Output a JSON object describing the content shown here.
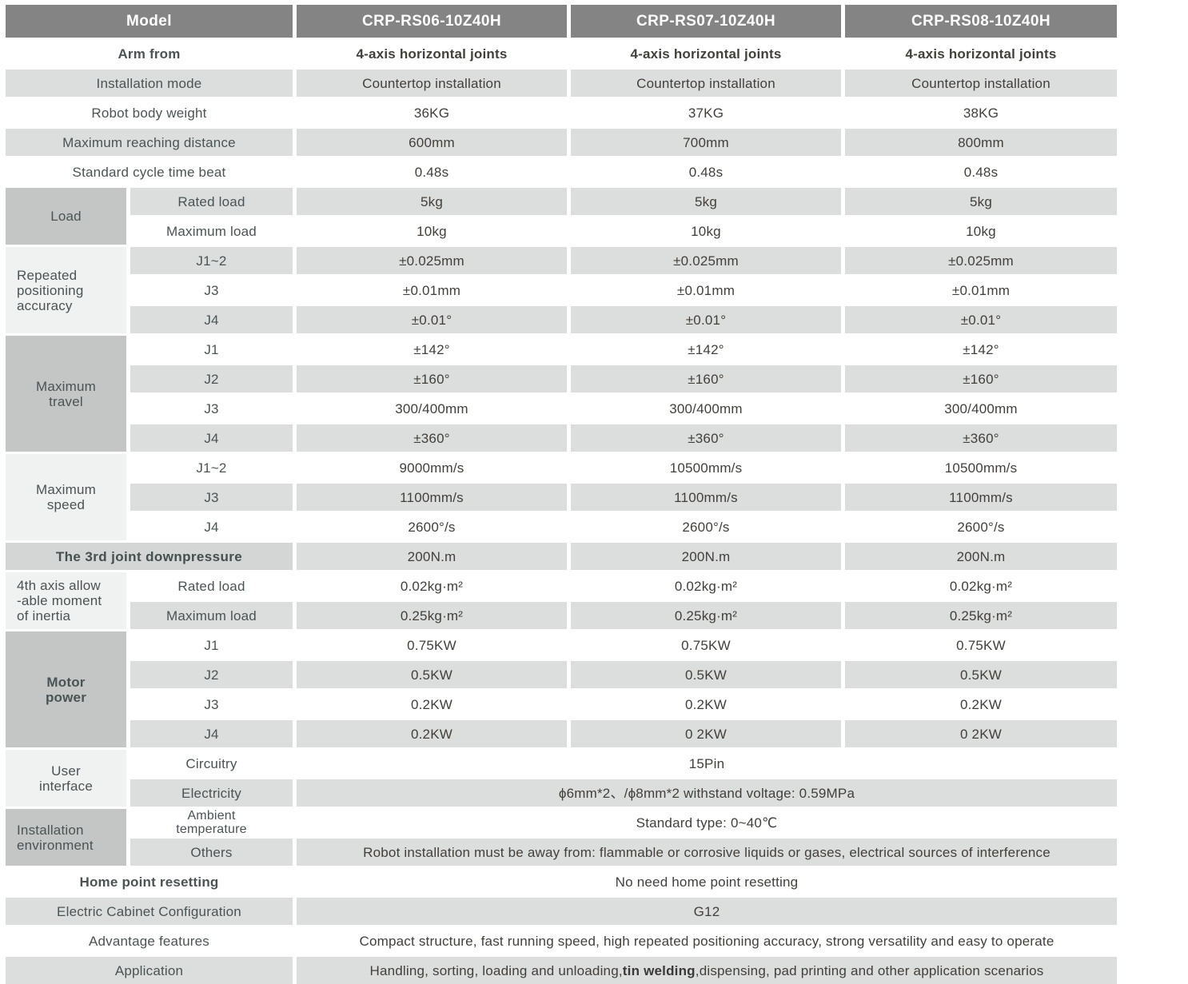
{
  "colors": {
    "header_bg": "#848484",
    "header_text": "#ffffff",
    "row_stripe_bg": "#dcdedd",
    "group_dark_bg": "#c3c6c5",
    "group_light_bg": "#f0f1f1",
    "section_label_bg": "#d3d6d5",
    "label_text": "#4c5355",
    "value_text": "#43403c"
  },
  "header": {
    "label": "Model",
    "models": [
      "CRP-RS06-10Z40H",
      "CRP-RS07-10Z40H",
      "CRP-RS08-10Z40H"
    ]
  },
  "rows": {
    "arm_from": {
      "label": "Arm from",
      "values": [
        "4-axis horizontal joints",
        "4-axis horizontal joints",
        "4-axis horizontal joints"
      ]
    },
    "installation_mode": {
      "label": "Installation mode",
      "values": [
        "Countertop installation",
        "Countertop installation",
        "Countertop installation"
      ]
    },
    "robot_body_weight": {
      "label": "Robot body weight",
      "values": [
        "36KG",
        "37KG",
        "38KG"
      ]
    },
    "max_reach": {
      "label": "Maximum reaching distance",
      "values": [
        "600mm",
        "700mm",
        "800mm"
      ]
    },
    "cycle_time": {
      "label": "Standard cycle time beat",
      "values": [
        "0.48s",
        "0.48s",
        "0.48s"
      ]
    },
    "load": {
      "label": "Load",
      "rated": {
        "label": "Rated load",
        "values": [
          "5kg",
          "5kg",
          "5kg"
        ]
      },
      "max": {
        "label": "Maximum load",
        "values": [
          "10kg",
          "10kg",
          "10kg"
        ]
      }
    },
    "accuracy": {
      "lines": [
        "Repeated",
        "positioning",
        "accuracy"
      ],
      "j12": {
        "label": "J1~2",
        "values": [
          "±0.025mm",
          "±0.025mm",
          "±0.025mm"
        ]
      },
      "j3": {
        "label": "J3",
        "values": [
          "±0.01mm",
          "±0.01mm",
          "±0.01mm"
        ]
      },
      "j4": {
        "label": "J4",
        "values": [
          "±0.01°",
          "±0.01°",
          "±0.01°"
        ]
      }
    },
    "travel": {
      "lines": [
        "Maximum",
        "travel"
      ],
      "j1": {
        "label": "J1",
        "values": [
          "±142°",
          "±142°",
          "±142°"
        ]
      },
      "j2": {
        "label": "J2",
        "values": [
          "±160°",
          "±160°",
          "±160°"
        ]
      },
      "j3": {
        "label": "J3",
        "values": [
          "300/400mm",
          "300/400mm",
          "300/400mm"
        ]
      },
      "j4": {
        "label": "J4",
        "values": [
          "±360°",
          "±360°",
          "±360°"
        ]
      }
    },
    "speed": {
      "lines": [
        "Maximum",
        "speed"
      ],
      "j12": {
        "label": "J1~2",
        "values": [
          "9000mm/s",
          "10500mm/s",
          "10500mm/s"
        ]
      },
      "j3": {
        "label": "J3",
        "values": [
          "1100mm/s",
          "1100mm/s",
          "1100mm/s"
        ]
      },
      "j4": {
        "label": "J4",
        "values": [
          "2600°/s",
          "2600°/s",
          "2600°/s"
        ]
      }
    },
    "third_joint": {
      "label": "The 3rd joint downpressure",
      "values": [
        "200N.m",
        "200N.m",
        "200N.m"
      ]
    },
    "inertia": {
      "lines": [
        "4th axis allow",
        "-able moment",
        "of inertia"
      ],
      "rated": {
        "label": "Rated load",
        "values": [
          "0.02kg·m²",
          "0.02kg·m²",
          "0.02kg·m²"
        ]
      },
      "max": {
        "label": "Maximum load",
        "values": [
          "0.25kg·m²",
          "0.25kg·m²",
          "0.25kg·m²"
        ]
      }
    },
    "motor": {
      "lines": [
        "Motor",
        "power"
      ],
      "j1": {
        "label": "J1",
        "values": [
          "0.75KW",
          "0.75KW",
          "0.75KW"
        ]
      },
      "j2": {
        "label": "J2",
        "values": [
          "0.5KW",
          "0.5KW",
          "0.5KW"
        ]
      },
      "j3": {
        "label": "J3",
        "values": [
          "0.2KW",
          "0.2KW",
          "0.2KW"
        ]
      },
      "j4": {
        "label": "J4",
        "values": [
          "0.2KW",
          "0 2KW",
          "0 2KW"
        ]
      }
    },
    "user_interface": {
      "lines": [
        "User",
        "interface"
      ],
      "circuitry": {
        "label": "Circuitry",
        "value": "15Pin"
      },
      "electricity": {
        "label": "Electricity",
        "value": "ϕ6mm*2、/ϕ8mm*2  withstand voltage: 0.59MPa"
      }
    },
    "environment": {
      "lines": [
        "Installation",
        "environment"
      ],
      "ambient": {
        "lines": [
          "Ambient",
          "temperature"
        ],
        "value": "Standard type:  0~40℃"
      },
      "others": {
        "label": "Others",
        "value": "Robot installation must be away from: flammable or corrosive liquids or gases, electrical sources of interference"
      }
    },
    "home_point": {
      "label": "Home point resetting",
      "value": "No need home point resetting"
    },
    "cabinet": {
      "label": "Electric Cabinet Configuration",
      "value": "G12"
    },
    "advantage": {
      "label": "Advantage features",
      "value": "Compact structure, fast running speed, high repeated positioning accuracy, strong versatility and easy to operate"
    },
    "application": {
      "label": "Application",
      "before": "Handling, sorting, loading and unloading,",
      "bold": "tin welding",
      "after": ",dispensing, pad printing and other application scenarios"
    }
  }
}
